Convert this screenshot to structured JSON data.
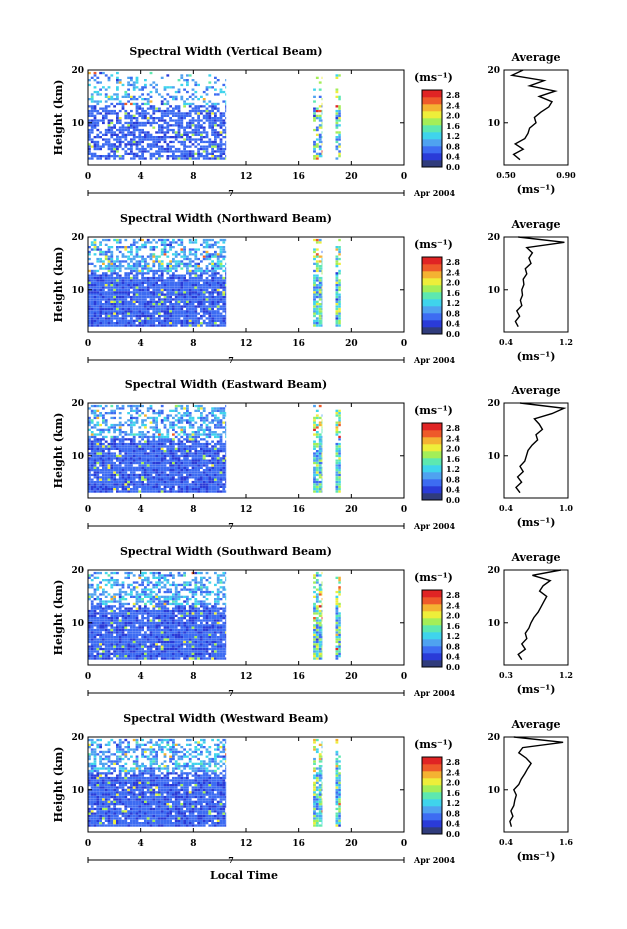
{
  "figure": {
    "xlabel": "Local Time",
    "date_label": "Apr 2004",
    "day_marker": "7",
    "colorbar_unit": "(ms⁻¹)",
    "colorbar_ticks": [
      "0.0",
      "0.4",
      "0.8",
      "1.2",
      "1.6",
      "2.0",
      "2.4",
      "2.8"
    ],
    "colors": {
      "scale": [
        "#303c7c",
        "#2a3bd8",
        "#3d6cf2",
        "#4fa2f0",
        "#3fd4ec",
        "#5de8b0",
        "#a4ee58",
        "#eeee3a",
        "#f4b232",
        "#ee5a2a",
        "#e02424"
      ]
    }
  },
  "chart_data": [
    {
      "type": "heatmap",
      "title": "Spectral Width (Vertical Beam)",
      "ylabel": "Height (km)",
      "xlim": [
        0,
        24
      ],
      "ylim": [
        2,
        20
      ],
      "xticks": [
        "0",
        "4",
        "8",
        "12",
        "16",
        "20",
        "0"
      ],
      "yticks": [
        "20",
        "10"
      ],
      "clim": [
        0,
        3.0
      ],
      "data_segments_hours": [
        [
          0,
          10.5
        ],
        [
          17.1,
          17.8
        ],
        [
          18.8,
          19.2
        ]
      ],
      "profile": {
        "title": "Average",
        "xlabel": "(ms⁻¹)",
        "xlim": [
          0.5,
          0.9
        ],
        "xticks": [
          "0.50",
          "0.90"
        ],
        "yticks": [
          "20",
          "10"
        ],
        "height_km": [
          3,
          4,
          5,
          6,
          7,
          8,
          9,
          10,
          11,
          12,
          13,
          14,
          15,
          16,
          17,
          18,
          19,
          20
        ],
        "mean_ms": [
          0.6,
          0.56,
          0.62,
          0.57,
          0.63,
          0.65,
          0.66,
          0.7,
          0.69,
          0.73,
          0.78,
          0.8,
          0.72,
          0.82,
          0.66,
          0.75,
          0.55,
          0.62
        ]
      }
    },
    {
      "type": "heatmap",
      "title": "Spectral Width (Northward Beam)",
      "ylabel": "Height (km)",
      "xlim": [
        0,
        24
      ],
      "ylim": [
        2,
        20
      ],
      "xticks": [
        "0",
        "4",
        "8",
        "12",
        "16",
        "20",
        "0"
      ],
      "yticks": [
        "20",
        "10"
      ],
      "clim": [
        0,
        3.0
      ],
      "data_segments_hours": [
        [
          0,
          10.5
        ],
        [
          17.1,
          17.8
        ],
        [
          18.8,
          19.2
        ]
      ],
      "profile": {
        "title": "Average",
        "xlabel": "(ms⁻¹)",
        "xlim": [
          0.3,
          1.2
        ],
        "xticks": [
          "0.4",
          "1.2"
        ],
        "yticks": [
          "20",
          "10"
        ],
        "height_km": [
          3,
          4,
          5,
          6,
          7,
          8,
          9,
          10,
          11,
          12,
          13,
          14,
          15,
          16,
          17,
          18,
          19,
          20
        ],
        "mean_ms": [
          0.5,
          0.46,
          0.52,
          0.48,
          0.55,
          0.53,
          0.56,
          0.55,
          0.58,
          0.57,
          0.62,
          0.6,
          0.68,
          0.65,
          0.7,
          0.62,
          1.15,
          0.5
        ]
      }
    },
    {
      "type": "heatmap",
      "title": "Spectral Width (Eastward Beam)",
      "ylabel": "Height (km)",
      "xlim": [
        0,
        24
      ],
      "ylim": [
        2,
        20
      ],
      "xticks": [
        "0",
        "4",
        "8",
        "12",
        "16",
        "20",
        "0"
      ],
      "yticks": [
        "20",
        "10"
      ],
      "clim": [
        0,
        3.0
      ],
      "data_segments_hours": [
        [
          0,
          10.5
        ],
        [
          17.1,
          17.8
        ],
        [
          18.8,
          19.2
        ]
      ],
      "profile": {
        "title": "Average",
        "xlabel": "(ms⁻¹)",
        "xlim": [
          0.3,
          1.1
        ],
        "xticks": [
          "0.4",
          "1.0"
        ],
        "yticks": [
          "20",
          "10"
        ],
        "height_km": [
          3,
          4,
          5,
          6,
          7,
          8,
          9,
          10,
          11,
          12,
          13,
          14,
          15,
          16,
          17,
          18,
          19,
          20
        ],
        "mean_ms": [
          0.5,
          0.45,
          0.52,
          0.47,
          0.54,
          0.5,
          0.56,
          0.58,
          0.6,
          0.65,
          0.72,
          0.7,
          0.78,
          0.74,
          0.68,
          0.9,
          1.05,
          0.5
        ]
      }
    },
    {
      "type": "heatmap",
      "title": "Spectral Width (Southward Beam)",
      "ylabel": "Height (km)",
      "xlim": [
        0,
        24
      ],
      "ylim": [
        2,
        20
      ],
      "xticks": [
        "0",
        "4",
        "8",
        "12",
        "16",
        "20",
        "0"
      ],
      "yticks": [
        "20",
        "10"
      ],
      "clim": [
        0,
        3.0
      ],
      "data_segments_hours": [
        [
          0,
          10.5
        ],
        [
          17.1,
          17.8
        ],
        [
          18.8,
          19.2
        ]
      ],
      "profile": {
        "title": "Average",
        "xlabel": "(ms⁻¹)",
        "xlim": [
          0.3,
          1.2
        ],
        "xticks": [
          "0.3",
          "1.2"
        ],
        "yticks": [
          "20",
          "10"
        ],
        "height_km": [
          3,
          4,
          5,
          6,
          7,
          8,
          9,
          10,
          11,
          12,
          13,
          14,
          15,
          16,
          17,
          18,
          19,
          20
        ],
        "mean_ms": [
          0.55,
          0.5,
          0.6,
          0.55,
          0.62,
          0.6,
          0.65,
          0.68,
          0.72,
          0.78,
          0.82,
          0.86,
          0.9,
          0.8,
          0.85,
          0.95,
          0.7,
          1.1
        ]
      }
    },
    {
      "type": "heatmap",
      "title": "Spectral Width (Westward Beam)",
      "ylabel": "Height (km)",
      "xlim": [
        0,
        24
      ],
      "ylim": [
        2,
        20
      ],
      "xticks": [
        "0",
        "4",
        "8",
        "12",
        "16",
        "20",
        "0"
      ],
      "yticks": [
        "20",
        "10"
      ],
      "clim": [
        0,
        3.0
      ],
      "data_segments_hours": [
        [
          0,
          10.5
        ],
        [
          17.1,
          17.8
        ],
        [
          18.8,
          19.2
        ]
      ],
      "profile": {
        "title": "Average",
        "xlabel": "(ms⁻¹)",
        "xlim": [
          0.3,
          1.6
        ],
        "xticks": [
          "0.4",
          "1.6"
        ],
        "yticks": [
          "20",
          "10"
        ],
        "height_km": [
          3,
          4,
          5,
          6,
          7,
          8,
          9,
          10,
          11,
          12,
          13,
          14,
          15,
          16,
          17,
          18,
          19,
          20
        ],
        "mean_ms": [
          0.45,
          0.42,
          0.48,
          0.44,
          0.5,
          0.52,
          0.55,
          0.5,
          0.6,
          0.65,
          0.72,
          0.78,
          0.85,
          0.75,
          0.6,
          0.68,
          1.5,
          0.5
        ]
      }
    }
  ]
}
